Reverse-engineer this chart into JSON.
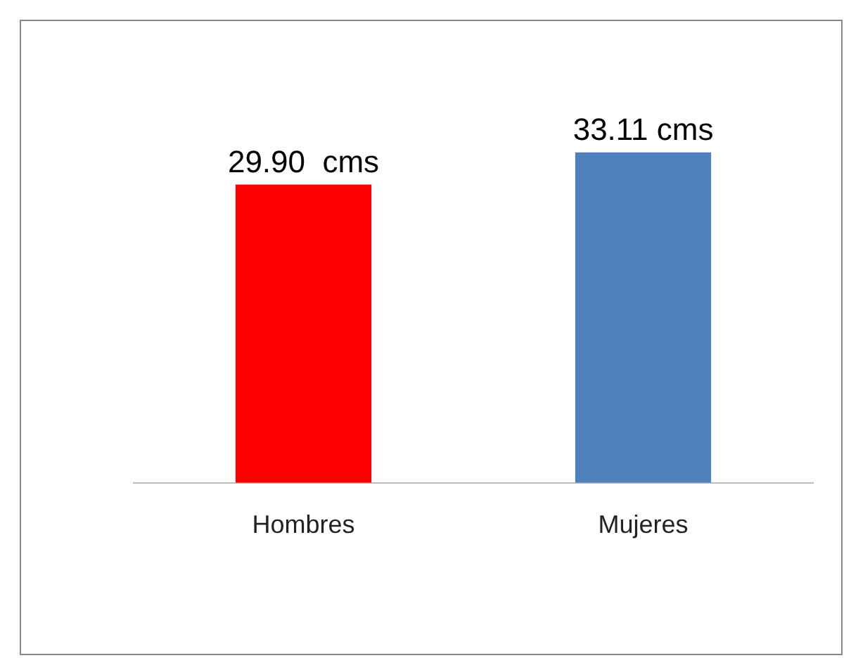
{
  "chart_data": {
    "type": "bar",
    "categories": [
      "Hombres",
      "Mujeres"
    ],
    "values": [
      29.9,
      33.11
    ],
    "colors": [
      "#ff0000",
      "#4f81bd"
    ],
    "value_labels": [
      "29.90  cms",
      "33.11 cms"
    ],
    "tick_labels": "x",
    "grid": false,
    "legend": false
  }
}
